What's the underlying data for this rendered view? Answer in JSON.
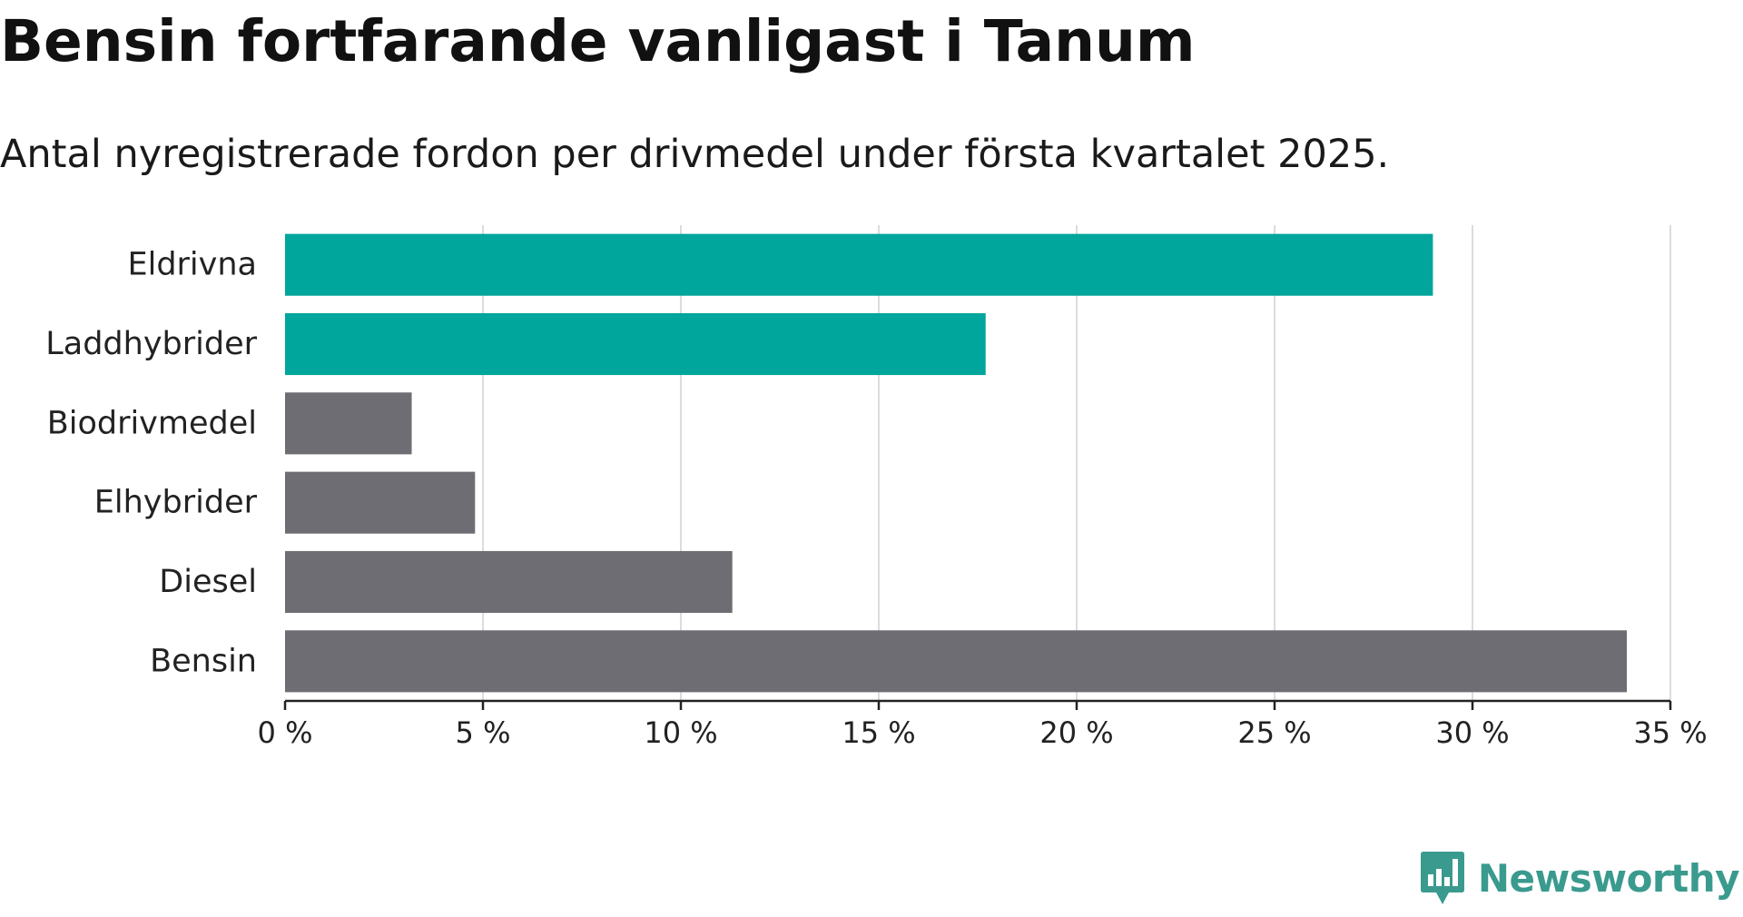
{
  "title": "Bensin fortfarande vanligast i Tanum",
  "subtitle": "Antal nyregistrerade fordon per drivmedel under första kvartalet 2025.",
  "brand": "Newsworthy",
  "colors": {
    "highlight": "#00a59b",
    "default": "#6e6d73",
    "grid": "#dcdcdc",
    "axis": "#222222",
    "brand": "#3a9a8e"
  },
  "chart_data": {
    "type": "bar",
    "orientation": "horizontal",
    "categories": [
      "Eldrivna",
      "Laddhybrider",
      "Biodrivmedel",
      "Elhybrider",
      "Diesel",
      "Bensin"
    ],
    "values": [
      29.0,
      17.7,
      3.2,
      4.8,
      11.3,
      33.9
    ],
    "highlighted": [
      true,
      true,
      false,
      false,
      false,
      false
    ],
    "xlim": [
      0,
      35
    ],
    "xticks": [
      0,
      5,
      10,
      15,
      20,
      25,
      30,
      35
    ],
    "xtick_labels": [
      "0 %",
      "5 %",
      "10 %",
      "15 %",
      "20 %",
      "25 %",
      "30 %",
      "35 %"
    ],
    "xlabel": "",
    "ylabel": "",
    "grid": true,
    "legend": "none"
  }
}
